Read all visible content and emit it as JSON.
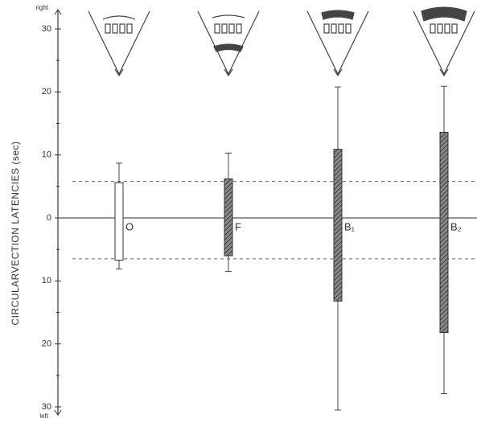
{
  "chart_data": {
    "type": "range",
    "y_label": "CIRCULARVECTION LATENCIES (sec)",
    "y_top_label": "right",
    "y_bottom_label": "left",
    "categories": [
      "O",
      "F",
      "B₁",
      "B₂"
    ],
    "whisker_low": [
      -8.1,
      -8.5,
      -30.5,
      -27.9
    ],
    "box_low": [
      -6.7,
      -6.0,
      -13.2,
      -18.2
    ],
    "box_high": [
      5.6,
      6.2,
      10.9,
      13.6
    ],
    "whisker_high": [
      8.7,
      10.3,
      20.8,
      20.9
    ],
    "box_colors": [
      "#ffffff",
      "#6a6a6a",
      "#6a6a6a",
      "#6a6a6a"
    ],
    "reference_lines": [
      5.8,
      -6.5
    ],
    "ylim": [
      -31,
      32
    ],
    "yticks": [
      {
        "value": 30,
        "label": "30"
      },
      20,
      10,
      0,
      {
        "value": -10,
        "label": "10"
      },
      {
        "value": -20,
        "label": "20"
      },
      {
        "value": -30,
        "label": "30"
      }
    ],
    "minor_yticks": [
      25,
      15,
      5,
      -5,
      -15,
      -25
    ]
  }
}
